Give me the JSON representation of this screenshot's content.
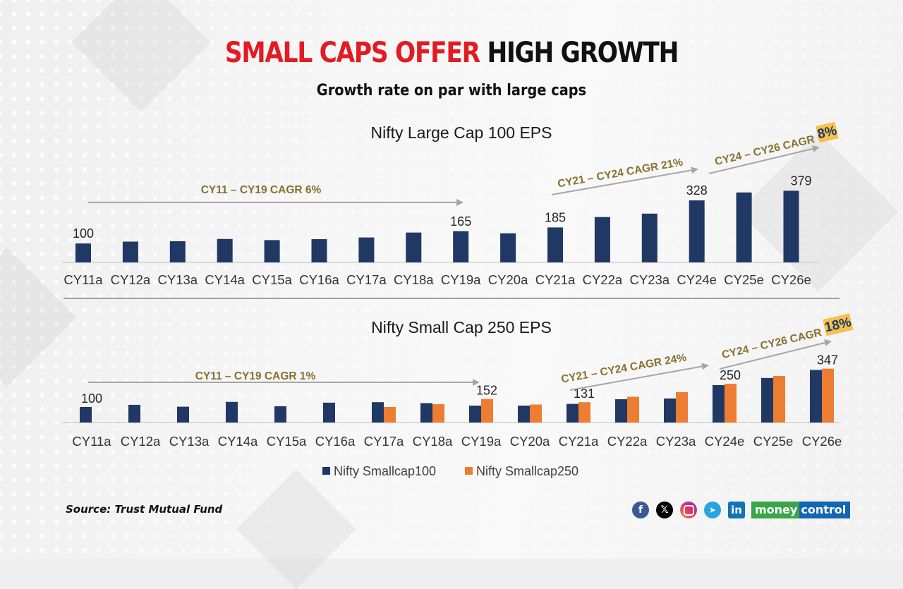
{
  "header": {
    "title_red": "SMALL CAPS OFFER",
    "title_black": "HIGH GROWTH",
    "subtitle": "Growth rate on par with large caps"
  },
  "colors": {
    "navy": "#1f3864",
    "orange": "#ed7d31",
    "annotation": "#85712f",
    "highlight": "#f5c24f",
    "title_red": "#e31b23"
  },
  "chart_data": [
    {
      "type": "bar",
      "title": "Nifty Large Cap 100 EPS",
      "categories": [
        "CY11a",
        "CY12a",
        "CY13a",
        "CY14a",
        "CY15a",
        "CY16a",
        "CY17a",
        "CY18a",
        "CY19a",
        "CY20a",
        "CY21a",
        "CY22a",
        "CY23a",
        "CY24e",
        "CY25e",
        "CY26e"
      ],
      "series": [
        {
          "name": "Nifty Large Cap 100",
          "color": "#1f3864",
          "values": [
            100,
            110,
            112,
            124,
            118,
            123,
            132,
            158,
            165,
            154,
            185,
            240,
            258,
            328,
            370,
            379
          ]
        }
      ],
      "data_labels": [
        {
          "category": "CY11a",
          "text": "100"
        },
        {
          "category": "CY19a",
          "text": "165"
        },
        {
          "category": "CY21a",
          "text": "185"
        },
        {
          "category": "CY24e",
          "text": "328"
        },
        {
          "category": "CY26e",
          "text": "379"
        }
      ],
      "annotations": [
        {
          "text": "CY11 – CY19 CAGR  6%",
          "from": "CY11a",
          "to": "CY19a",
          "highlight": ""
        },
        {
          "text": "CY21 – CY24 CAGR 21%",
          "from": "CY21a",
          "to": "CY24e",
          "highlight": ""
        },
        {
          "text": "CY24 – CY26 CAGR",
          "from": "CY24e",
          "to": "CY26e",
          "highlight": "8%"
        }
      ],
      "xlabel": "",
      "ylabel": "",
      "ylim": [
        0,
        400
      ],
      "grid": false,
      "legend": "none"
    },
    {
      "type": "bar",
      "title": "Nifty Small Cap 250 EPS",
      "categories": [
        "CY11a",
        "CY12a",
        "CY13a",
        "CY14a",
        "CY15a",
        "CY16a",
        "CY17a",
        "CY18a",
        "CY19a",
        "CY20a",
        "CY21a",
        "CY22a",
        "CY23a",
        "CY24e",
        "CY25e",
        "CY26e"
      ],
      "series": [
        {
          "name": "Nifty Smallcap100",
          "color": "#1f3864",
          "values": [
            100,
            114,
            102,
            133,
            105,
            128,
            131,
            125,
            109,
            109,
            120,
            150,
            155,
            241,
            287,
            339
          ]
        },
        {
          "name": "Nifty Smallcap250",
          "color": "#ed7d31",
          "values": [
            null,
            null,
            null,
            null,
            null,
            null,
            100,
            118,
            152,
            116,
            131,
            166,
            196,
            250,
            300,
            347
          ]
        }
      ],
      "data_labels": [
        {
          "category": "CY11a",
          "text": "100"
        },
        {
          "category": "CY19a",
          "text": "152"
        },
        {
          "category": "CY21a",
          "text": "131"
        },
        {
          "category": "CY24e",
          "text": "250"
        },
        {
          "category": "CY26e",
          "text": "347"
        }
      ],
      "annotations": [
        {
          "text": "CY11 – CY19 CAGR 1%",
          "from": "CY11a",
          "to": "CY19a",
          "highlight": ""
        },
        {
          "text": "CY21 – CY24 CAGR 24%",
          "from": "CY21a",
          "to": "CY24e",
          "highlight": ""
        },
        {
          "text": "CY24 – CY26 CAGR",
          "from": "CY24e",
          "to": "CY26e",
          "highlight": "18%"
        }
      ],
      "xlabel": "",
      "ylabel": "",
      "ylim": [
        0,
        400
      ],
      "grid": false,
      "legend": "bottom"
    }
  ],
  "footer": {
    "source": "Source: Trust Mutual Fund",
    "social_icons": [
      "facebook",
      "x",
      "instagram",
      "telegram",
      "linkedin"
    ],
    "brand_part1": "money",
    "brand_part2": "control"
  }
}
